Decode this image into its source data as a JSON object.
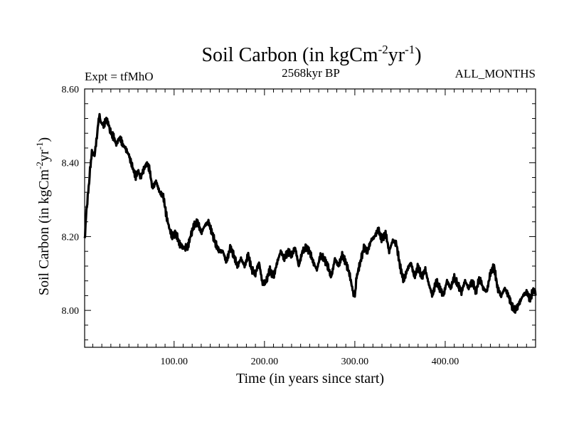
{
  "chart_data": {
    "type": "line",
    "title": {
      "text": "Soil Carbon (in kgCm",
      "sup1": "-2",
      "mid": "yr",
      "sup2": "-1",
      "end": ")"
    },
    "subtitle_left": "Expt = tfMhO",
    "subtitle_center": "2568kyr BP",
    "subtitle_right": "ALL_MONTHS",
    "xlabel": "Time (in years since start)",
    "ylabel": {
      "text": "Soil Carbon (in kgCm",
      "sup1": "-2",
      "mid": "yr",
      "sup2": "-1",
      "end": ")"
    },
    "xlim": [
      1,
      500
    ],
    "ylim": [
      7.9,
      8.6
    ],
    "xticks": [
      100,
      200,
      300,
      400
    ],
    "xtick_labels": [
      "100.00",
      "200.00",
      "300.00",
      "400.00"
    ],
    "yticks": [
      8.0,
      8.2,
      8.4,
      8.6
    ],
    "ytick_labels": [
      "8.00",
      "8.20",
      "8.40",
      "8.60"
    ],
    "grid": false,
    "series": [
      {
        "name": "Soil Carbon",
        "color": "#000000",
        "x": [
          1,
          3,
          5,
          7,
          9,
          12,
          15,
          17,
          19,
          22,
          25,
          28,
          30,
          33,
          36,
          40,
          43,
          46,
          50,
          55,
          58,
          60,
          63,
          66,
          70,
          73,
          76,
          80,
          84,
          88,
          92,
          95,
          98,
          102,
          106,
          110,
          115,
          118,
          122,
          126,
          130,
          134,
          138,
          142,
          146,
          150,
          154,
          158,
          162,
          166,
          170,
          174,
          178,
          182,
          186,
          190,
          194,
          198,
          202,
          206,
          210,
          214,
          218,
          222,
          226,
          230,
          234,
          238,
          242,
          246,
          250,
          254,
          258,
          262,
          266,
          270,
          274,
          278,
          282,
          286,
          290,
          294,
          298,
          300,
          302,
          306,
          310,
          314,
          318,
          322,
          326,
          330,
          334,
          338,
          342,
          346,
          350,
          354,
          358,
          362,
          366,
          370,
          374,
          378,
          382,
          386,
          390,
          394,
          398,
          402,
          406,
          410,
          414,
          418,
          422,
          426,
          430,
          434,
          438,
          442,
          446,
          450,
          454,
          458,
          462,
          466,
          470,
          474,
          478,
          482,
          486,
          490,
          494,
          498,
          500
        ],
        "y": [
          8.19,
          8.27,
          8.32,
          8.38,
          8.43,
          8.42,
          8.48,
          8.53,
          8.51,
          8.5,
          8.52,
          8.5,
          8.48,
          8.47,
          8.45,
          8.47,
          8.45,
          8.44,
          8.42,
          8.38,
          8.36,
          8.38,
          8.36,
          8.38,
          8.4,
          8.38,
          8.33,
          8.35,
          8.32,
          8.31,
          8.25,
          8.22,
          8.2,
          8.21,
          8.18,
          8.17,
          8.17,
          8.2,
          8.23,
          8.24,
          8.21,
          8.23,
          8.24,
          8.21,
          8.18,
          8.16,
          8.16,
          8.13,
          8.17,
          8.15,
          8.12,
          8.14,
          8.12,
          8.15,
          8.11,
          8.1,
          8.13,
          8.07,
          8.08,
          8.11,
          8.09,
          8.13,
          8.16,
          8.14,
          8.16,
          8.15,
          8.17,
          8.12,
          8.16,
          8.17,
          8.16,
          8.13,
          8.11,
          8.15,
          8.14,
          8.12,
          8.09,
          8.14,
          8.12,
          8.15,
          8.13,
          8.1,
          8.05,
          8.04,
          8.09,
          8.13,
          8.17,
          8.16,
          8.19,
          8.2,
          8.22,
          8.19,
          8.21,
          8.16,
          8.19,
          8.18,
          8.12,
          8.08,
          8.11,
          8.13,
          8.09,
          8.12,
          8.09,
          8.11,
          8.07,
          8.04,
          8.08,
          8.06,
          8.04,
          8.08,
          8.06,
          8.09,
          8.07,
          8.05,
          8.08,
          8.06,
          8.08,
          8.05,
          8.09,
          8.06,
          8.05,
          8.1,
          8.12,
          8.06,
          8.04,
          8.06,
          8.04,
          8.01,
          8.0,
          8.02,
          8.04,
          8.05,
          8.03,
          8.06,
          8.04
        ]
      }
    ]
  }
}
